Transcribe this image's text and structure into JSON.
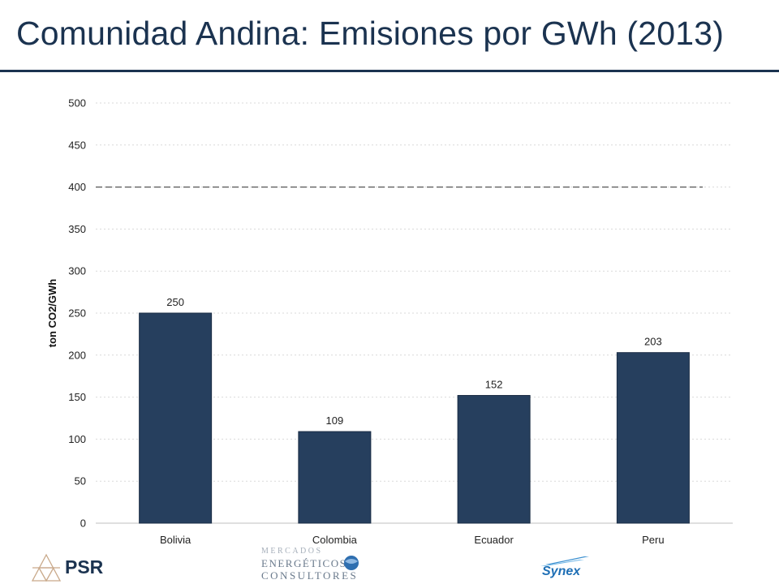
{
  "page": {
    "title": "Comunidad Andina: Emisiones por GWh (2013)"
  },
  "colors": {
    "title": "#1b3350",
    "bar": "#263f5e",
    "grid": "#d9d9d9",
    "reference_line": "#555555"
  },
  "chart_data": {
    "type": "bar",
    "categories": [
      "Bolivia",
      "Colombia",
      "Ecuador",
      "Peru"
    ],
    "values": [
      250,
      109,
      152,
      203
    ],
    "data_labels": [
      "250",
      "109",
      "152",
      "203"
    ],
    "ylabel": "ton CO2/GWh",
    "xlabel": "",
    "ylim": [
      0,
      500
    ],
    "yticks": [
      0,
      50,
      100,
      150,
      200,
      250,
      300,
      350,
      400,
      450,
      500
    ],
    "grid": true,
    "reference_line": {
      "y": 400,
      "style": "dashed"
    }
  },
  "logos": {
    "psr": {
      "label": "PSR"
    },
    "mec": {
      "line1": "MERCADOS",
      "line2": "ENERGÉTICOS",
      "line3": "CONSULTORES"
    },
    "synex": {
      "label": "Synex"
    }
  }
}
